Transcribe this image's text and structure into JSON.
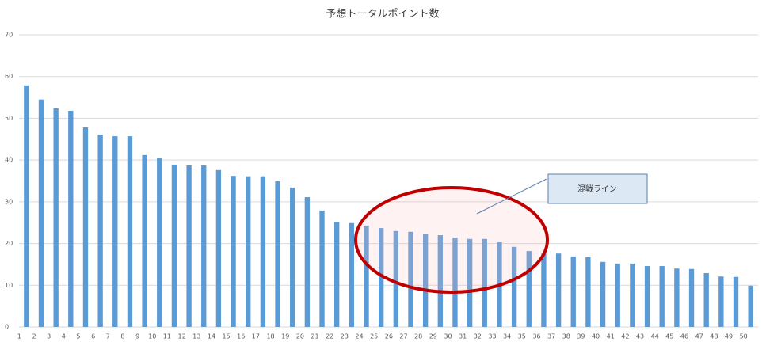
{
  "chart_data": {
    "type": "bar",
    "title": "予想トータルポイント数",
    "categories": [
      "1",
      "2",
      "3",
      "4",
      "5",
      "6",
      "7",
      "8",
      "9",
      "10",
      "11",
      "12",
      "13",
      "14",
      "15",
      "16",
      "17",
      "18",
      "19",
      "20",
      "21",
      "22",
      "23",
      "24",
      "25",
      "26",
      "27",
      "28",
      "29",
      "30",
      "31",
      "32",
      "33",
      "34",
      "35",
      "36",
      "37",
      "38",
      "39",
      "40",
      "41",
      "42",
      "43",
      "44",
      "45",
      "46",
      "47",
      "48",
      "49",
      "50"
    ],
    "values": [
      57.9,
      54.5,
      52.4,
      51.8,
      47.8,
      46.1,
      45.7,
      45.7,
      41.2,
      40.4,
      38.9,
      38.7,
      38.7,
      37.6,
      36.2,
      36.1,
      36.1,
      34.9,
      33.4,
      31.1,
      27.9,
      25.2,
      24.9,
      24.3,
      23.7,
      23,
      22.8,
      22.2,
      22,
      21.4,
      21.1,
      21.1,
      20.3,
      19.2,
      18.2,
      17.6,
      17.6,
      16.9,
      16.7,
      15.6,
      15.2,
      15.2,
      14.6,
      14.6,
      14,
      13.9,
      12.9,
      12.1,
      12,
      9.9
    ],
    "color": "#5b9bd5",
    "ylim": [
      0,
      70
    ],
    "yticks": [
      0,
      10,
      20,
      30,
      40,
      50,
      60,
      70
    ],
    "grid": true,
    "annotation": "混戦ライン"
  }
}
